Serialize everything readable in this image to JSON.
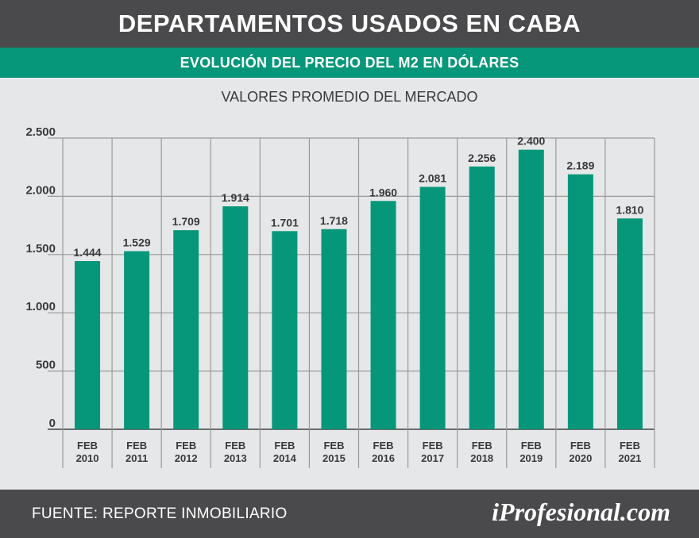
{
  "header": {
    "title": "DEPARTAMENTOS USADOS EN CABA"
  },
  "subheader": {
    "title": "EVOLUCIÓN DEL PRECIO DEL M2 EN DÓLARES"
  },
  "caption": "VALORES PROMEDIO DEL MERCADO",
  "footer": {
    "source": "FUENTE: REPORTE INMOBILIARIO",
    "brand": "iProfesional.com"
  },
  "colors": {
    "bar": "#06977a",
    "header": "#4a4a4c",
    "background": "#e6e7e9",
    "grid": "#9a9a9a"
  },
  "chart_data": {
    "type": "bar",
    "title": "EVOLUCIÓN DEL PRECIO DEL M2 EN DÓLARES",
    "subtitle": "VALORES PROMEDIO DEL MERCADO",
    "categories": [
      [
        "FEB",
        "2010"
      ],
      [
        "FEB",
        "2011"
      ],
      [
        "FEB",
        "2012"
      ],
      [
        "FEB",
        "2013"
      ],
      [
        "FEB",
        "2014"
      ],
      [
        "FEB",
        "2015"
      ],
      [
        "FEB",
        "2016"
      ],
      [
        "FEB",
        "2017"
      ],
      [
        "FEB",
        "2018"
      ],
      [
        "FEB",
        "2019"
      ],
      [
        "FEB",
        "2020"
      ],
      [
        "FEB",
        "2021"
      ]
    ],
    "values": [
      1444,
      1529,
      1709,
      1914,
      1701,
      1718,
      1960,
      2081,
      2256,
      2400,
      2189,
      1810
    ],
    "value_labels": [
      "1.444",
      "1.529",
      "1.709",
      "1.914",
      "1.701",
      "1.718",
      "1.960",
      "2.081",
      "2.256",
      "2.400",
      "2.189",
      "1.810"
    ],
    "yticks": [
      0,
      500,
      1000,
      1500,
      2000,
      2500
    ],
    "ytick_labels": [
      "0",
      "500",
      "1.000",
      "1.500",
      "2.000",
      "2.500"
    ],
    "ylim": [
      0,
      2500
    ],
    "grid": true,
    "xlabel": "",
    "ylabel": ""
  }
}
